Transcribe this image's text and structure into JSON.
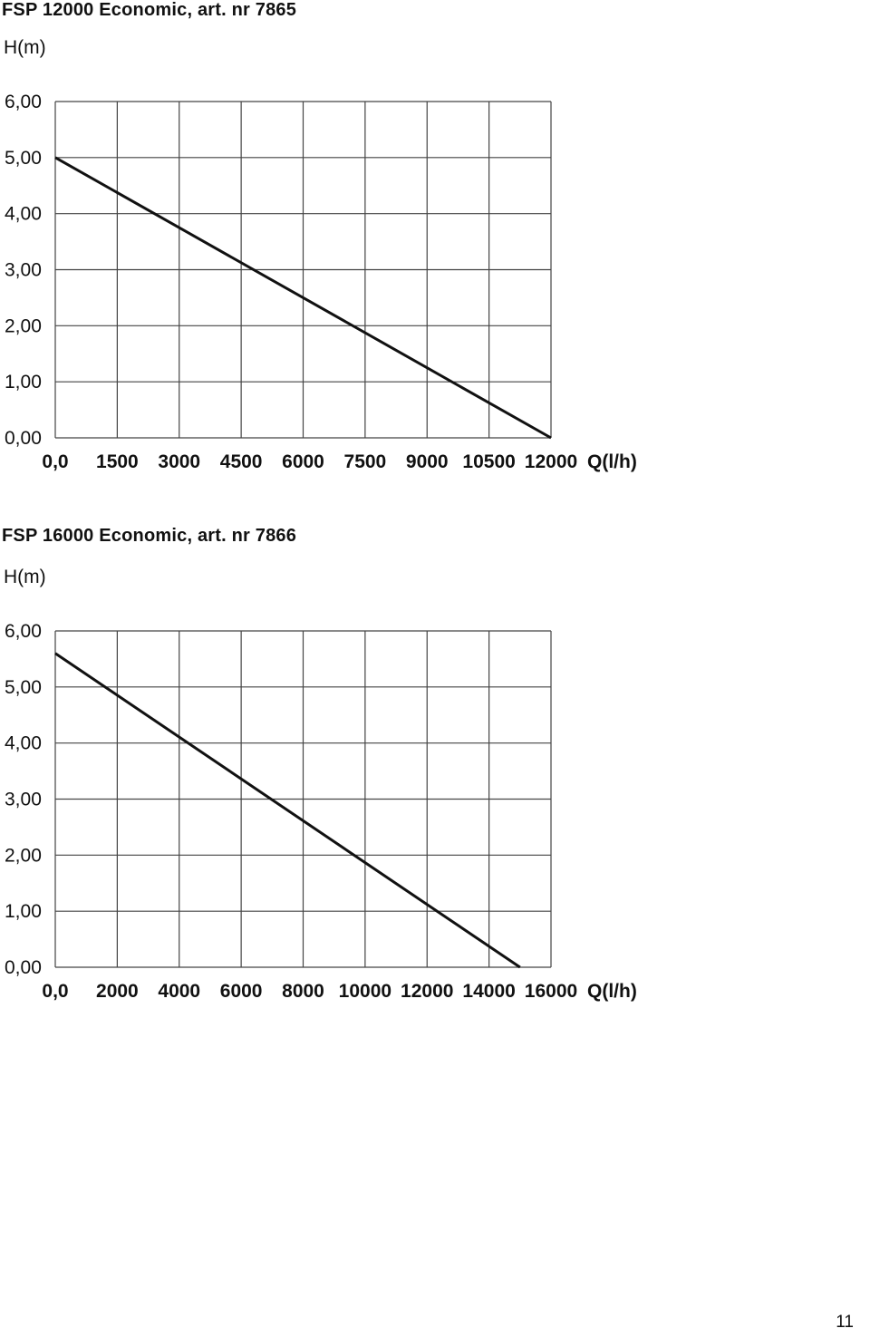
{
  "page": {
    "number": "11"
  },
  "chart_data": [
    {
      "type": "line",
      "title": "FSP 12000 Economic, art. nr 7865",
      "ylabel": "H(m)",
      "xlabel": "Q(l/h)",
      "x_ticks": [
        "0,0",
        "1500",
        "3000",
        "4500",
        "6000",
        "7500",
        "9000",
        "10500",
        "12000"
      ],
      "y_ticks": [
        "0,00",
        "1,00",
        "2,00",
        "3,00",
        "4,00",
        "5,00",
        "6,00"
      ],
      "xlim": [
        0,
        12000
      ],
      "ylim": [
        0,
        6
      ],
      "grid": true,
      "series": [
        {
          "x": [
            0,
            12000
          ],
          "y": [
            5.0,
            0.0
          ]
        }
      ]
    },
    {
      "type": "line",
      "title": "FSP 16000 Economic, art. nr 7866",
      "ylabel": "H(m)",
      "xlabel": "Q(l/h)",
      "x_ticks": [
        "0,0",
        "2000",
        "4000",
        "6000",
        "8000",
        "10000",
        "12000",
        "14000",
        "16000"
      ],
      "y_ticks": [
        "0,00",
        "1,00",
        "2,00",
        "3,00",
        "4,00",
        "5,00",
        "6,00"
      ],
      "xlim": [
        0,
        16000
      ],
      "ylim": [
        0,
        6
      ],
      "grid": true,
      "series": [
        {
          "x": [
            0,
            15000
          ],
          "y": [
            5.6,
            0.0
          ]
        }
      ]
    }
  ]
}
